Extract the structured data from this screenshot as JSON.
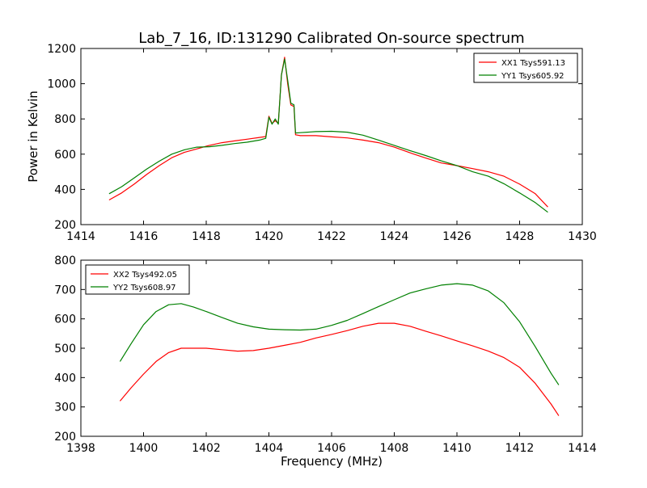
{
  "title": "Lab_7_16, ID:131290 Calibrated On-source spectrum",
  "chart_data": [
    {
      "type": "line",
      "ylabel": "Power in Kelvin",
      "xlabel": "",
      "xlim": [
        1414,
        1430
      ],
      "ylim": [
        200,
        1200
      ],
      "xticks": [
        "1414",
        "1416",
        "1418",
        "1420",
        "1422",
        "1424",
        "1426",
        "1428",
        "1430"
      ],
      "yticks": [
        "200",
        "400",
        "600",
        "800",
        "1000",
        "1200"
      ],
      "legend_position": "top-right",
      "grid": false,
      "series": [
        {
          "name": "XX1 Tsys591.13",
          "color": "#ff0000",
          "points": [
            [
              1414.9,
              340
            ],
            [
              1415.3,
              380
            ],
            [
              1415.7,
              430
            ],
            [
              1416.1,
              485
            ],
            [
              1416.5,
              535
            ],
            [
              1416.9,
              580
            ],
            [
              1417.3,
              610
            ],
            [
              1417.7,
              630
            ],
            [
              1418.1,
              650
            ],
            [
              1418.5,
              665
            ],
            [
              1418.9,
              675
            ],
            [
              1419.3,
              685
            ],
            [
              1419.7,
              695
            ],
            [
              1419.9,
              700
            ],
            [
              1420.0,
              815
            ],
            [
              1420.1,
              775
            ],
            [
              1420.2,
              790
            ],
            [
              1420.3,
              775
            ],
            [
              1420.4,
              1050
            ],
            [
              1420.5,
              1150
            ],
            [
              1420.6,
              1000
            ],
            [
              1420.7,
              880
            ],
            [
              1420.8,
              870
            ],
            [
              1420.85,
              710
            ],
            [
              1421.0,
              705
            ],
            [
              1421.5,
              705
            ],
            [
              1422.0,
              698
            ],
            [
              1422.5,
              692
            ],
            [
              1423.0,
              680
            ],
            [
              1423.5,
              665
            ],
            [
              1424.0,
              640
            ],
            [
              1424.5,
              608
            ],
            [
              1425.0,
              578
            ],
            [
              1425.5,
              550
            ],
            [
              1426.0,
              535
            ],
            [
              1426.5,
              518
            ],
            [
              1427.0,
              500
            ],
            [
              1427.5,
              475
            ],
            [
              1428.0,
              430
            ],
            [
              1428.5,
              375
            ],
            [
              1428.9,
              300
            ]
          ]
        },
        {
          "name": "YY1 Tsys605.92",
          "color": "#008000",
          "points": [
            [
              1414.9,
              375
            ],
            [
              1415.3,
              415
            ],
            [
              1415.7,
              465
            ],
            [
              1416.1,
              515
            ],
            [
              1416.5,
              560
            ],
            [
              1416.9,
              600
            ],
            [
              1417.3,
              625
            ],
            [
              1417.7,
              640
            ],
            [
              1418.1,
              642
            ],
            [
              1418.5,
              650
            ],
            [
              1418.9,
              660
            ],
            [
              1419.3,
              668
            ],
            [
              1419.7,
              680
            ],
            [
              1419.9,
              690
            ],
            [
              1420.0,
              810
            ],
            [
              1420.1,
              770
            ],
            [
              1420.2,
              800
            ],
            [
              1420.3,
              770
            ],
            [
              1420.4,
              1050
            ],
            [
              1420.5,
              1140
            ],
            [
              1420.6,
              1020
            ],
            [
              1420.7,
              890
            ],
            [
              1420.8,
              880
            ],
            [
              1420.85,
              720
            ],
            [
              1421.0,
              722
            ],
            [
              1421.5,
              728
            ],
            [
              1422.0,
              730
            ],
            [
              1422.5,
              725
            ],
            [
              1423.0,
              708
            ],
            [
              1423.5,
              680
            ],
            [
              1424.0,
              650
            ],
            [
              1424.5,
              620
            ],
            [
              1425.0,
              592
            ],
            [
              1425.5,
              562
            ],
            [
              1426.0,
              535
            ],
            [
              1426.5,
              500
            ],
            [
              1427.0,
              475
            ],
            [
              1427.5,
              432
            ],
            [
              1428.0,
              380
            ],
            [
              1428.5,
              325
            ],
            [
              1428.9,
              270
            ]
          ]
        }
      ]
    },
    {
      "type": "line",
      "ylabel": "",
      "xlabel": "Frequency (MHz)",
      "xlim": [
        1398,
        1414
      ],
      "ylim": [
        200,
        800
      ],
      "xticks": [
        "1398",
        "1400",
        "1402",
        "1404",
        "1406",
        "1408",
        "1410",
        "1412",
        "1414"
      ],
      "yticks": [
        "200",
        "300",
        "400",
        "500",
        "600",
        "700",
        "800"
      ],
      "legend_position": "top-left",
      "grid": false,
      "series": [
        {
          "name": "XX2 Tsys492.05",
          "color": "#ff0000",
          "points": [
            [
              1399.25,
              320
            ],
            [
              1399.6,
              365
            ],
            [
              1400.0,
              412
            ],
            [
              1400.4,
              455
            ],
            [
              1400.8,
              485
            ],
            [
              1401.2,
              500
            ],
            [
              1401.6,
              500
            ],
            [
              1402.0,
              500
            ],
            [
              1402.5,
              495
            ],
            [
              1403.0,
              490
            ],
            [
              1403.5,
              492
            ],
            [
              1404.0,
              500
            ],
            [
              1404.5,
              510
            ],
            [
              1405.0,
              520
            ],
            [
              1405.5,
              535
            ],
            [
              1406.0,
              547
            ],
            [
              1406.5,
              560
            ],
            [
              1407.0,
              575
            ],
            [
              1407.5,
              585
            ],
            [
              1408.0,
              585
            ],
            [
              1408.5,
              575
            ],
            [
              1409.0,
              558
            ],
            [
              1409.5,
              542
            ],
            [
              1410.0,
              525
            ],
            [
              1410.5,
              508
            ],
            [
              1411.0,
              490
            ],
            [
              1411.5,
              468
            ],
            [
              1412.0,
              435
            ],
            [
              1412.5,
              380
            ],
            [
              1413.0,
              310
            ],
            [
              1413.25,
              270
            ]
          ]
        },
        {
          "name": "YY2 Tsys608.97",
          "color": "#008000",
          "points": [
            [
              1399.25,
              455
            ],
            [
              1399.6,
              515
            ],
            [
              1400.0,
              580
            ],
            [
              1400.4,
              625
            ],
            [
              1400.8,
              648
            ],
            [
              1401.2,
              652
            ],
            [
              1401.6,
              640
            ],
            [
              1402.0,
              625
            ],
            [
              1402.5,
              605
            ],
            [
              1403.0,
              585
            ],
            [
              1403.5,
              573
            ],
            [
              1404.0,
              565
            ],
            [
              1404.5,
              563
            ],
            [
              1405.0,
              562
            ],
            [
              1405.5,
              565
            ],
            [
              1406.0,
              578
            ],
            [
              1406.5,
              595
            ],
            [
              1407.0,
              618
            ],
            [
              1407.5,
              642
            ],
            [
              1408.0,
              665
            ],
            [
              1408.5,
              688
            ],
            [
              1409.0,
              702
            ],
            [
              1409.5,
              715
            ],
            [
              1410.0,
              720
            ],
            [
              1410.5,
              715
            ],
            [
              1411.0,
              695
            ],
            [
              1411.5,
              655
            ],
            [
              1412.0,
              590
            ],
            [
              1412.5,
              505
            ],
            [
              1413.0,
              415
            ],
            [
              1413.25,
              375
            ]
          ]
        }
      ]
    }
  ]
}
